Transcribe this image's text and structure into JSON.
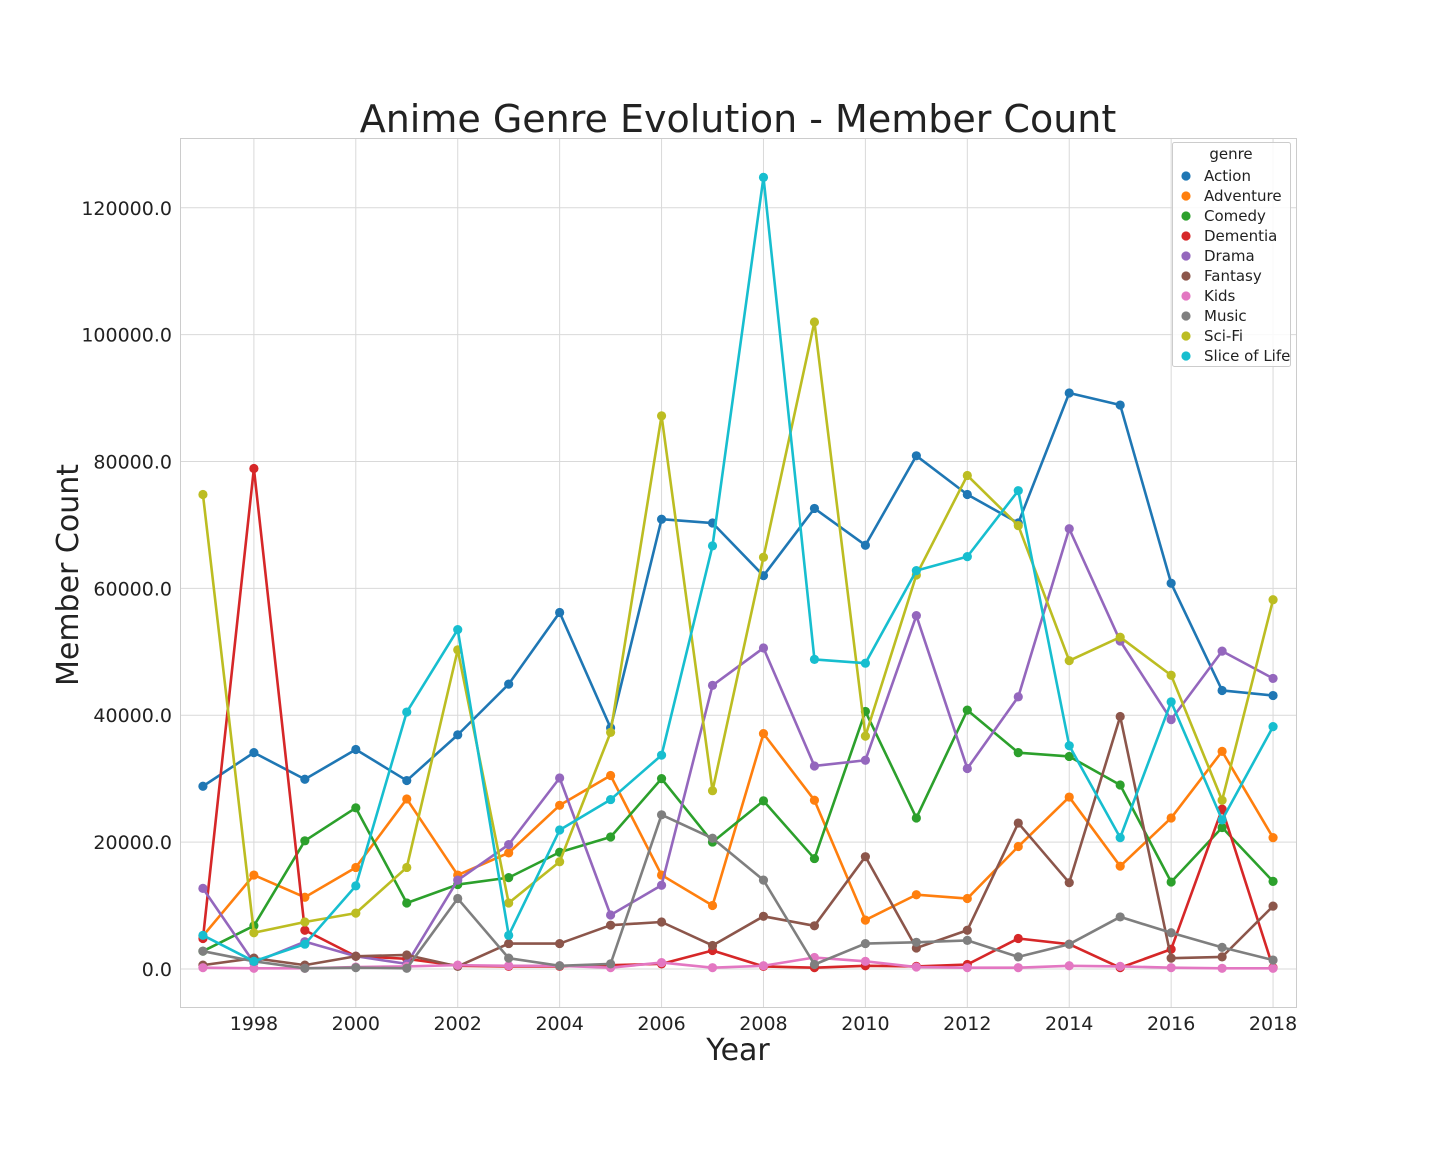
{
  "chart_data": {
    "type": "line",
    "title": "Anime Genre Evolution - Member Count",
    "xlabel": "Year",
    "ylabel": "Member Count",
    "x": [
      1997,
      1998,
      1999,
      2000,
      2001,
      2002,
      2003,
      2004,
      2005,
      2006,
      2007,
      2008,
      2009,
      2010,
      2011,
      2012,
      2013,
      2014,
      2015,
      2016,
      2017,
      2018
    ],
    "xticks": [
      "1998",
      "2000",
      "2002",
      "2004",
      "2006",
      "2008",
      "2010",
      "2012",
      "2014",
      "2016",
      "2018"
    ],
    "yticks": [
      "0.0",
      "20000.0",
      "40000.0",
      "60000.0",
      "80000.0",
      "100000.0",
      "120000.0"
    ],
    "ylim": [
      -6000,
      131000
    ],
    "xlim": [
      1996.5,
      1998.5
    ],
    "grid": true,
    "legend": {
      "title": "genre",
      "position": "top-right"
    },
    "series": [
      {
        "name": "Action",
        "color": "#1f77b4",
        "values": [
          28800,
          34100,
          29900,
          34600,
          29700,
          36900,
          44900,
          56200,
          38000,
          70900,
          70300,
          62000,
          72600,
          66800,
          80900,
          74800,
          70300,
          90800,
          88900,
          60800,
          43900,
          43100
        ]
      },
      {
        "name": "Adventure",
        "color": "#ff7f0e",
        "values": [
          5200,
          14800,
          11300,
          16000,
          26800,
          14800,
          18300,
          25800,
          30500,
          14800,
          10000,
          37100,
          26600,
          7700,
          11700,
          11100,
          19300,
          27100,
          16200,
          23800,
          34300,
          20700
        ]
      },
      {
        "name": "Comedy",
        "color": "#2ca02c",
        "values": [
          2800,
          6800,
          20200,
          25400,
          10400,
          13300,
          14400,
          18400,
          20800,
          30000,
          20000,
          26500,
          17400,
          40600,
          23800,
          40800,
          34100,
          33500,
          29000,
          13700,
          22300,
          13800
        ]
      },
      {
        "name": "Dementia",
        "color": "#d62728",
        "values": [
          4800,
          78900,
          6100,
          2000,
          1600,
          500,
          400,
          400,
          600,
          800,
          2900,
          400,
          200,
          500,
          400,
          700,
          4800,
          3900,
          200,
          3100,
          25200,
          200
        ]
      },
      {
        "name": "Drama",
        "color": "#9467bd",
        "values": [
          12700,
          1000,
          4300,
          2000,
          800,
          14000,
          19600,
          30100,
          8500,
          13200,
          44700,
          50600,
          32000,
          32900,
          55700,
          31600,
          42900,
          69400,
          51700,
          39300,
          50100,
          45800
        ]
      },
      {
        "name": "Fantasy",
        "color": "#8c564b",
        "values": [
          600,
          1700,
          600,
          2000,
          2200,
          400,
          4000,
          4000,
          6900,
          7400,
          3700,
          8300,
          6800,
          17700,
          3300,
          6100,
          23000,
          13600,
          39800,
          1700,
          1900,
          9900
        ]
      },
      {
        "name": "Kids",
        "color": "#e377c2",
        "values": [
          200,
          100,
          100,
          300,
          400,
          600,
          500,
          500,
          200,
          1000,
          200,
          500,
          1800,
          1200,
          300,
          200,
          200,
          500,
          400,
          200,
          100,
          100
        ]
      },
      {
        "name": "Music",
        "color": "#7f7f7f",
        "values": [
          2800,
          1200,
          100,
          200,
          100,
          11100,
          1700,
          500,
          800,
          24300,
          20600,
          14000,
          700,
          4000,
          4200,
          4500,
          1900,
          3900,
          8200,
          5700,
          3400,
          1400
        ]
      },
      {
        "name": "Sci-Fi",
        "color": "#bcbd22",
        "values": [
          74800,
          5700,
          7400,
          8800,
          16000,
          50300,
          10400,
          16900,
          37300,
          87200,
          28100,
          64900,
          102000,
          36700,
          62100,
          77800,
          69900,
          48600,
          52300,
          46300,
          26600,
          58200
        ]
      },
      {
        "name": "Slice of Life",
        "color": "#17becf",
        "values": [
          5300,
          1200,
          3900,
          13100,
          40500,
          53500,
          5300,
          21900,
          26700,
          33700,
          66700,
          124800,
          48800,
          48200,
          62800,
          65000,
          75400,
          35200,
          20700,
          42100,
          23500,
          38200
        ]
      }
    ]
  }
}
